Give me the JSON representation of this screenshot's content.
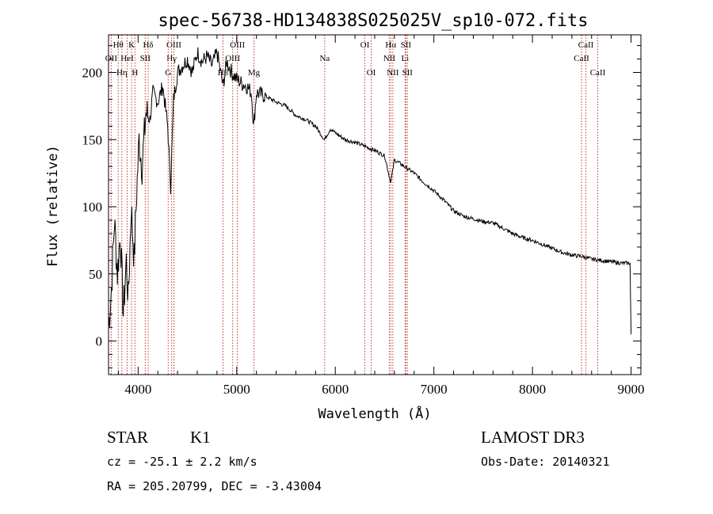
{
  "chart_data": {
    "type": "line",
    "title": "spec-56738-HD134838S025025V_sp10-072.fits",
    "xlabel": "Wavelength (Å)",
    "ylabel": "Flux (relative)",
    "xlim": [
      3700,
      9100
    ],
    "ylim": [
      -25,
      228
    ],
    "xticks": [
      4000,
      5000,
      6000,
      7000,
      8000,
      9000
    ],
    "yticks": [
      0,
      50,
      100,
      150,
      200
    ],
    "grid": false,
    "series": [
      {
        "name": "spectrum",
        "anchors": [
          [
            3700,
            10
          ],
          [
            3730,
            40
          ],
          [
            3760,
            90
          ],
          [
            3790,
            50
          ],
          [
            3820,
            80
          ],
          [
            3850,
            20
          ],
          [
            3880,
            60
          ],
          [
            3900,
            30
          ],
          [
            3930,
            100
          ],
          [
            3960,
            60
          ],
          [
            3985,
            110
          ],
          [
            4010,
            150
          ],
          [
            4040,
            130
          ],
          [
            4080,
            170
          ],
          [
            4120,
            165
          ],
          [
            4150,
            185
          ],
          [
            4200,
            178
          ],
          [
            4250,
            190
          ],
          [
            4300,
            160
          ],
          [
            4330,
            115
          ],
          [
            4360,
            180
          ],
          [
            4400,
            200
          ],
          [
            4450,
            205
          ],
          [
            4500,
            210
          ],
          [
            4550,
            200
          ],
          [
            4600,
            215
          ],
          [
            4650,
            208
          ],
          [
            4700,
            212
          ],
          [
            4750,
            205
          ],
          [
            4800,
            215
          ],
          [
            4861,
            190
          ],
          [
            4900,
            208
          ],
          [
            4950,
            200
          ],
          [
            5000,
            195
          ],
          [
            5050,
            192
          ],
          [
            5100,
            190
          ],
          [
            5150,
            185
          ],
          [
            5172,
            160
          ],
          [
            5200,
            185
          ],
          [
            5300,
            182
          ],
          [
            5400,
            178
          ],
          [
            5500,
            175
          ],
          [
            5600,
            168
          ],
          [
            5700,
            165
          ],
          [
            5800,
            160
          ],
          [
            5890,
            150
          ],
          [
            5950,
            158
          ],
          [
            6000,
            155
          ],
          [
            6100,
            150
          ],
          [
            6200,
            148
          ],
          [
            6300,
            145
          ],
          [
            6400,
            142
          ],
          [
            6500,
            138
          ],
          [
            6563,
            118
          ],
          [
            6600,
            135
          ],
          [
            6700,
            130
          ],
          [
            6800,
            125
          ],
          [
            6900,
            118
          ],
          [
            7000,
            112
          ],
          [
            7100,
            105
          ],
          [
            7200,
            97
          ],
          [
            7300,
            93
          ],
          [
            7400,
            91
          ],
          [
            7500,
            89
          ],
          [
            7600,
            88
          ],
          [
            7700,
            84
          ],
          [
            7800,
            80
          ],
          [
            7900,
            77
          ],
          [
            8000,
            75
          ],
          [
            8100,
            72
          ],
          [
            8200,
            69
          ],
          [
            8300,
            66
          ],
          [
            8400,
            64
          ],
          [
            8500,
            63
          ],
          [
            8600,
            61
          ],
          [
            8700,
            60
          ],
          [
            8800,
            59
          ],
          [
            8900,
            58
          ],
          [
            8990,
            58
          ],
          [
            9000,
            5
          ]
        ]
      }
    ],
    "lines": [
      {
        "label": "Hθ",
        "wave": 3798,
        "row": 1
      },
      {
        "label": "OII",
        "wave": 3727,
        "row": 2
      },
      {
        "label": "Hη",
        "wave": 3835,
        "row": 3
      },
      {
        "label": "K",
        "wave": 3934,
        "row": 1
      },
      {
        "label": "HeI",
        "wave": 3889,
        "row": 2
      },
      {
        "label": "H",
        "wave": 3968,
        "row": 3
      },
      {
        "label": "Hδ",
        "wave": 4102,
        "row": 1
      },
      {
        "label": "SII",
        "wave": 4072,
        "row": 2
      },
      {
        "label": "OIII",
        "wave": 4363,
        "row": 1
      },
      {
        "label": "Hγ",
        "wave": 4340,
        "row": 2
      },
      {
        "label": "G",
        "wave": 4305,
        "row": 3
      },
      {
        "label": "OIII",
        "wave": 5007,
        "row": 1
      },
      {
        "label": "OIII",
        "wave": 4959,
        "row": 2
      },
      {
        "label": "Hβ",
        "wave": 4861,
        "row": 3
      },
      {
        "label": "Mg",
        "wave": 5175,
        "row": 3
      },
      {
        "label": "Na",
        "wave": 5893,
        "row": 2
      },
      {
        "label": "OI",
        "wave": 6300,
        "row": 1
      },
      {
        "label": "OI",
        "wave": 6364,
        "row": 3
      },
      {
        "label": "Hα",
        "wave": 6563,
        "row": 1
      },
      {
        "label": "SII",
        "wave": 6716,
        "row": 1
      },
      {
        "label": "NII",
        "wave": 6548,
        "row": 2
      },
      {
        "label": "Li",
        "wave": 6708,
        "row": 2
      },
      {
        "label": "NII",
        "wave": 6584,
        "row": 3
      },
      {
        "label": "SII",
        "wave": 6731,
        "row": 3
      },
      {
        "label": "CaII",
        "wave": 8542,
        "row": 1
      },
      {
        "label": "CaII",
        "wave": 8498,
        "row": 2
      },
      {
        "label": "CaII",
        "wave": 8662,
        "row": 3
      }
    ]
  },
  "info": {
    "class": "STAR",
    "subclass": "K1",
    "survey": "LAMOST DR3",
    "cz": "cz = -25.1 ± 2.2 km/s",
    "obsdate": "Obs-Date: 20140321",
    "coords": "RA = 205.20799, DEC =  -3.43004"
  },
  "colors": {
    "line_marker": "#c0392b",
    "spectrum": "#000000",
    "axes": "#000000"
  }
}
